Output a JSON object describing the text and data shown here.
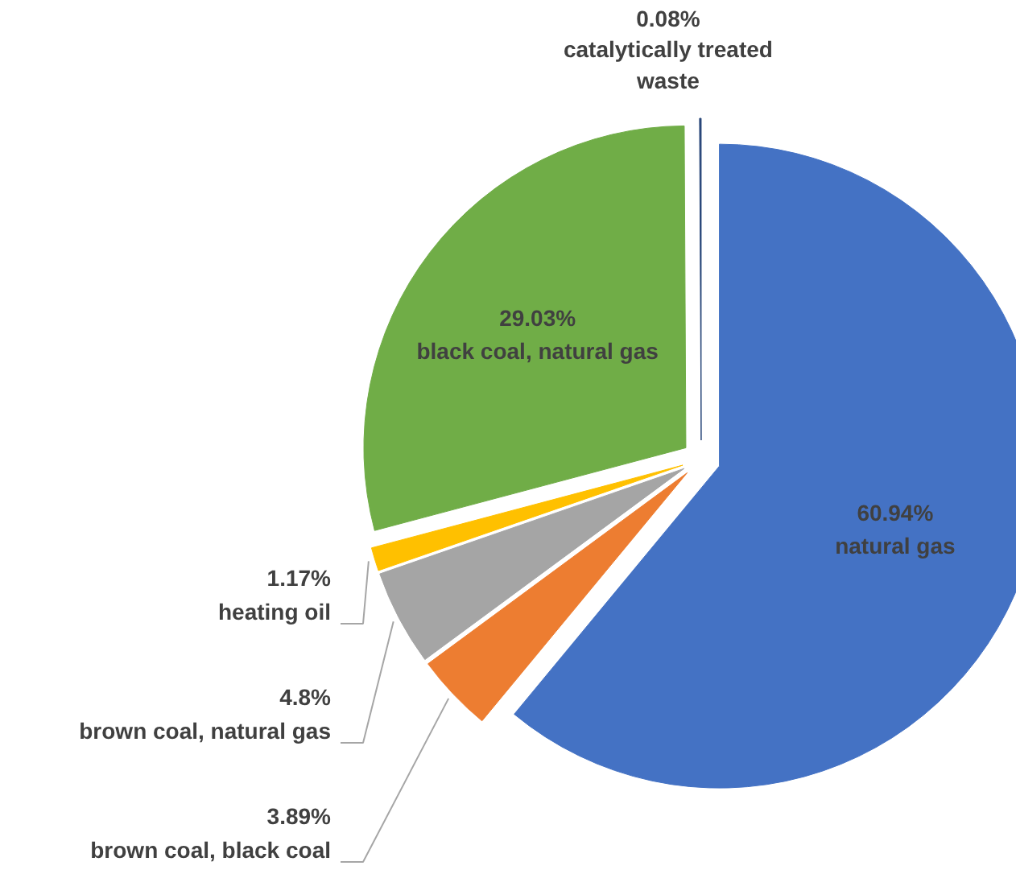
{
  "chart_data": {
    "type": "pie",
    "categories": [
      "natural gas",
      "brown coal, black coal",
      "brown coal, natural gas",
      "heating oil",
      "black coal, natural gas",
      "catalytically treated waste"
    ],
    "values": [
      60.94,
      3.89,
      4.8,
      1.17,
      29.03,
      0.08
    ],
    "value_labels": [
      "60.94%",
      "3.89%",
      "4.8%",
      "1.17%",
      "29.03%",
      "0.08%"
    ],
    "colors": [
      "#4472c4",
      "#ed7d31",
      "#a5a5a5",
      "#ffc000",
      "#70ad47",
      "#264478"
    ]
  }
}
